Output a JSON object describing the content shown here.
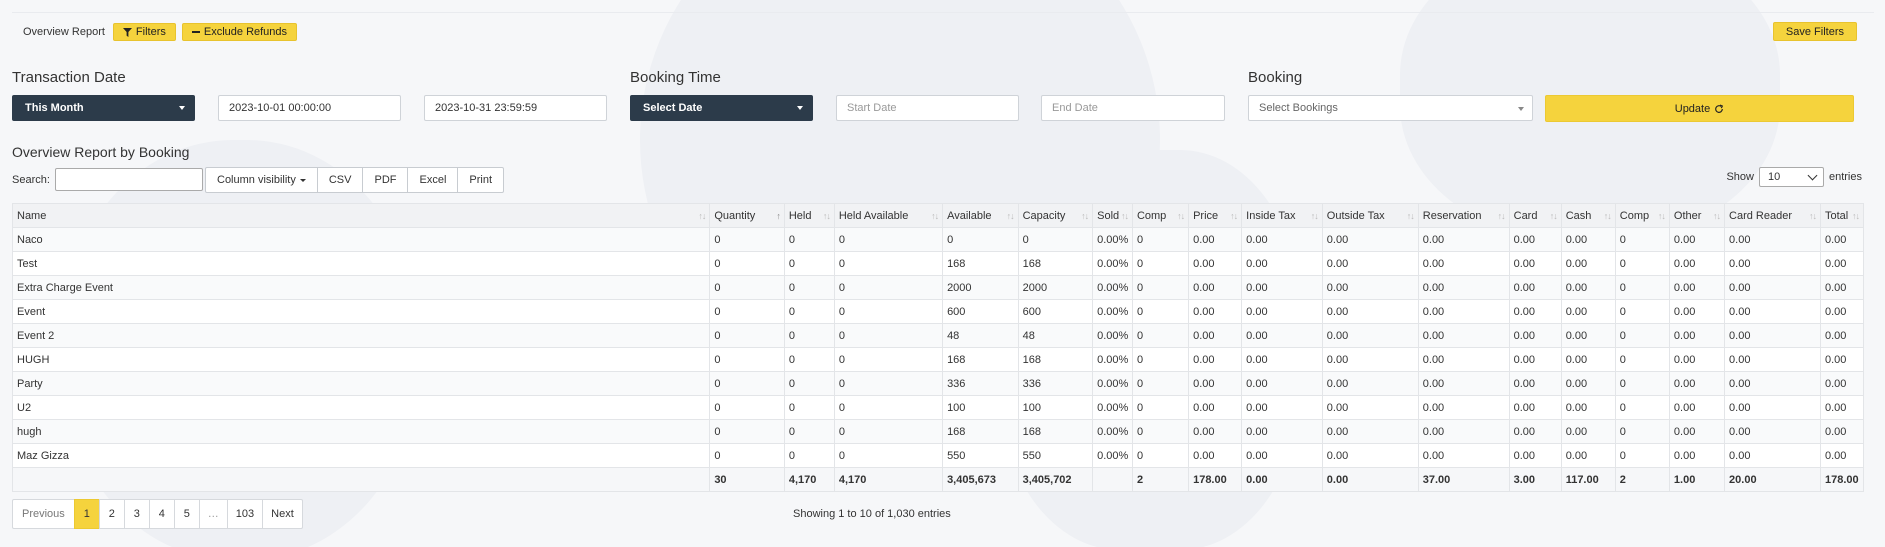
{
  "topbar": {
    "report_label": "Overview Report",
    "filters_label": "Filters",
    "exclude_refunds_label": "Exclude Refunds",
    "save_filters_label": "Save Filters"
  },
  "filters": {
    "transaction_date_title": "Transaction Date",
    "transaction_period": "This Month",
    "transaction_start": "2023-10-01 00:00:00",
    "transaction_end": "2023-10-31 23:59:59",
    "booking_time_title": "Booking Time",
    "booking_time_select": "Select Date",
    "booking_start_placeholder": "Start Date",
    "booking_end_placeholder": "End Date",
    "booking_title": "Booking",
    "booking_select_placeholder": "Select Bookings",
    "update_label": "Update"
  },
  "report": {
    "title": "Overview Report by Booking",
    "search_label": "Search:",
    "buttons": {
      "column_visibility": "Column visibility",
      "csv": "CSV",
      "pdf": "PDF",
      "excel": "Excel",
      "print": "Print"
    },
    "show_label": "Show",
    "show_value": "10",
    "entries_label": "entries"
  },
  "table": {
    "columns": [
      "Name",
      "Quantity",
      "Held",
      "Held Available",
      "Available",
      "Capacity",
      "Sold",
      "Comp",
      "Price",
      "Inside Tax",
      "Outside Tax",
      "Reservation",
      "Card",
      "Cash",
      "Comp",
      "Other",
      "Card Reader",
      "Total"
    ],
    "rows": [
      [
        "Naco",
        "0",
        "0",
        "0",
        "0",
        "0",
        "0.00%",
        "0",
        "0.00",
        "0.00",
        "0.00",
        "0.00",
        "0.00",
        "0.00",
        "0",
        "0.00",
        "0.00",
        "0.00"
      ],
      [
        "Test",
        "0",
        "0",
        "0",
        "168",
        "168",
        "0.00%",
        "0",
        "0.00",
        "0.00",
        "0.00",
        "0.00",
        "0.00",
        "0.00",
        "0",
        "0.00",
        "0.00",
        "0.00"
      ],
      [
        "Extra Charge Event",
        "0",
        "0",
        "0",
        "2000",
        "2000",
        "0.00%",
        "0",
        "0.00",
        "0.00",
        "0.00",
        "0.00",
        "0.00",
        "0.00",
        "0",
        "0.00",
        "0.00",
        "0.00"
      ],
      [
        "Event",
        "0",
        "0",
        "0",
        "600",
        "600",
        "0.00%",
        "0",
        "0.00",
        "0.00",
        "0.00",
        "0.00",
        "0.00",
        "0.00",
        "0",
        "0.00",
        "0.00",
        "0.00"
      ],
      [
        "Event 2",
        "0",
        "0",
        "0",
        "48",
        "48",
        "0.00%",
        "0",
        "0.00",
        "0.00",
        "0.00",
        "0.00",
        "0.00",
        "0.00",
        "0",
        "0.00",
        "0.00",
        "0.00"
      ],
      [
        "HUGH",
        "0",
        "0",
        "0",
        "168",
        "168",
        "0.00%",
        "0",
        "0.00",
        "0.00",
        "0.00",
        "0.00",
        "0.00",
        "0.00",
        "0",
        "0.00",
        "0.00",
        "0.00"
      ],
      [
        "Party",
        "0",
        "0",
        "0",
        "336",
        "336",
        "0.00%",
        "0",
        "0.00",
        "0.00",
        "0.00",
        "0.00",
        "0.00",
        "0.00",
        "0",
        "0.00",
        "0.00",
        "0.00"
      ],
      [
        "U2",
        "0",
        "0",
        "0",
        "100",
        "100",
        "0.00%",
        "0",
        "0.00",
        "0.00",
        "0.00",
        "0.00",
        "0.00",
        "0.00",
        "0",
        "0.00",
        "0.00",
        "0.00"
      ],
      [
        "hugh",
        "0",
        "0",
        "0",
        "168",
        "168",
        "0.00%",
        "0",
        "0.00",
        "0.00",
        "0.00",
        "0.00",
        "0.00",
        "0.00",
        "0",
        "0.00",
        "0.00",
        "0.00"
      ],
      [
        "Maz Gizza",
        "0",
        "0",
        "0",
        "550",
        "550",
        "0.00%",
        "0",
        "0.00",
        "0.00",
        "0.00",
        "0.00",
        "0.00",
        "0.00",
        "0",
        "0.00",
        "0.00",
        "0.00"
      ]
    ],
    "totals": [
      "",
      "30",
      "4,170",
      "4,170",
      "3,405,673",
      "3,405,702",
      "",
      "2",
      "178.00",
      "0.00",
      "0.00",
      "37.00",
      "3.00",
      "117.00",
      "2",
      "1.00",
      "20.00",
      "178.00"
    ]
  },
  "pagination": {
    "previous": "Previous",
    "pages": [
      "1",
      "2",
      "3",
      "4",
      "5",
      "…",
      "103"
    ],
    "active_page": "1",
    "next": "Next",
    "info": "Showing 1 to 10 of 1,030 entries"
  },
  "colors": {
    "accent": "#f5d33d",
    "dark": "#2c3b4a"
  },
  "icons": {
    "filter": "funnel-icon",
    "exclude": "minus-icon",
    "update": "refresh-icon"
  }
}
